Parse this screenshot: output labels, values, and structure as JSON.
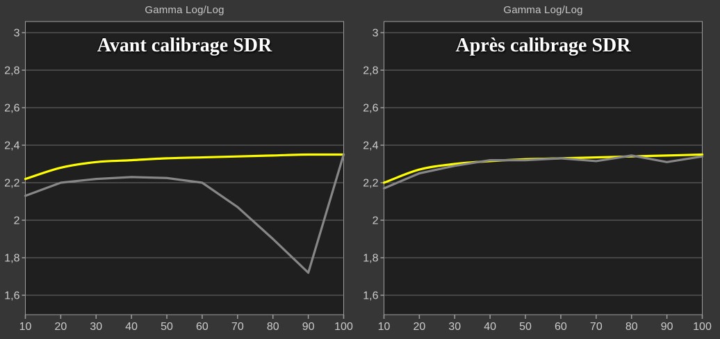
{
  "page": {
    "background": "#363636",
    "plot_background": "#1f1f1f",
    "gridline_color": "#6e6e6e",
    "border_color": "#9e9e9e",
    "tick_text_color": "#cccccc",
    "header_text_color": "#c6c6c6",
    "title_text_color": "#ffffff"
  },
  "chart_data": [
    {
      "type": "line",
      "title": "Gamma Log/Log",
      "subtitle": "Avant calibrage SDR",
      "xlabel": "",
      "ylabel": "",
      "x": [
        10,
        20,
        30,
        40,
        50,
        60,
        70,
        80,
        90,
        100
      ],
      "x_tick_labels": [
        "10",
        "20",
        "30",
        "40",
        "50",
        "60",
        "70",
        "80",
        "90",
        "100"
      ],
      "y_ticks": [
        {
          "value": 3.0,
          "label": "3"
        },
        {
          "value": 2.8,
          "label": "2,8"
        },
        {
          "value": 2.6,
          "label": "2,6"
        },
        {
          "value": 2.4,
          "label": "2,4"
        },
        {
          "value": 2.2,
          "label": "2,2"
        },
        {
          "value": 2.0,
          "label": "2"
        },
        {
          "value": 1.8,
          "label": "1,8"
        },
        {
          "value": 1.6,
          "label": "1,6"
        }
      ],
      "ylim": [
        1.5,
        3.06
      ],
      "xlim": [
        10,
        100
      ],
      "grid": "horizontal",
      "legend": "none",
      "series": [
        {
          "name": "reference-gamma",
          "color": "#ffff00",
          "smooth": true,
          "values": [
            2.22,
            2.28,
            2.31,
            2.32,
            2.33,
            2.335,
            2.34,
            2.345,
            2.35,
            2.35
          ]
        },
        {
          "name": "measured-gamma",
          "color": "#878787",
          "smooth": false,
          "values": [
            2.13,
            2.2,
            2.22,
            2.23,
            2.225,
            2.2,
            2.07,
            1.9,
            1.72,
            2.35
          ]
        }
      ]
    },
    {
      "type": "line",
      "title": "Gamma Log/Log",
      "subtitle": "Après calibrage SDR",
      "xlabel": "",
      "ylabel": "",
      "x": [
        10,
        20,
        30,
        40,
        50,
        60,
        70,
        80,
        90,
        100
      ],
      "x_tick_labels": [
        "10",
        "20",
        "30",
        "40",
        "50",
        "60",
        "70",
        "80",
        "90",
        "100"
      ],
      "y_ticks": [
        {
          "value": 3.0,
          "label": "3"
        },
        {
          "value": 2.8,
          "label": "2,8"
        },
        {
          "value": 2.6,
          "label": "2,6"
        },
        {
          "value": 2.4,
          "label": "2,4"
        },
        {
          "value": 2.2,
          "label": "2,2"
        },
        {
          "value": 2.0,
          "label": "2"
        },
        {
          "value": 1.8,
          "label": "1,8"
        },
        {
          "value": 1.6,
          "label": "1,6"
        }
      ],
      "ylim": [
        1.5,
        3.06
      ],
      "xlim": [
        10,
        100
      ],
      "grid": "horizontal",
      "legend": "none",
      "series": [
        {
          "name": "reference-gamma",
          "color": "#ffff00",
          "smooth": true,
          "values": [
            2.2,
            2.27,
            2.3,
            2.315,
            2.325,
            2.33,
            2.335,
            2.34,
            2.345,
            2.35
          ]
        },
        {
          "name": "measured-gamma",
          "color": "#878787",
          "smooth": false,
          "values": [
            2.17,
            2.25,
            2.29,
            2.32,
            2.32,
            2.33,
            2.315,
            2.345,
            2.31,
            2.34
          ]
        }
      ]
    }
  ]
}
